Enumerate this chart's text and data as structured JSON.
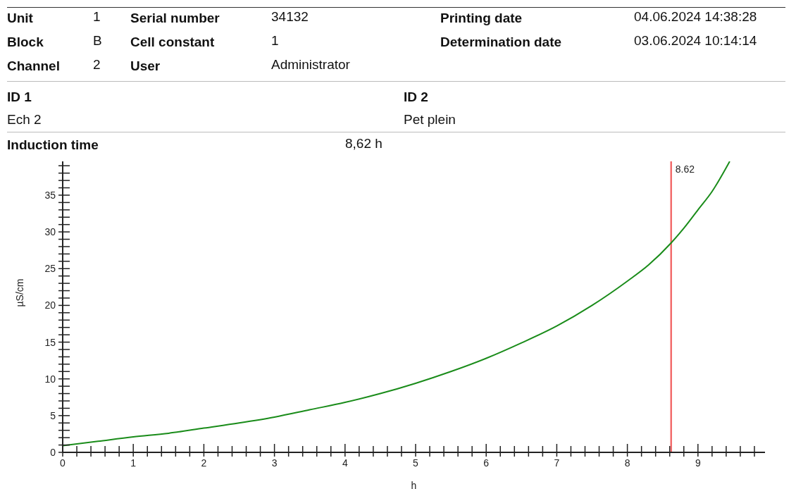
{
  "chart_data": {
    "type": "line",
    "annotations": [
      "Unit",
      "1",
      "Serial number",
      "34132",
      "Printing date",
      "04.06.2024 14:38:28",
      "Block",
      "B",
      "Cell constant",
      "1",
      "Determination date",
      "03.06.2024 10:14:14",
      "Channel",
      "2",
      "User",
      "Administrator",
      "ID 1",
      "ID 2",
      "Ech 2",
      "Pet plein",
      "Induction time",
      "8,62 h"
    ],
    "xlabel": "h",
    "ylabel": "µS/cm",
    "x": [
      0,
      0.5,
      1,
      1.5,
      2,
      2.5,
      3,
      3.5,
      4,
      4.5,
      5,
      5.5,
      6,
      6.5,
      7,
      7.5,
      8,
      8.3,
      8.62,
      8.8,
      9,
      9.2,
      9.45
    ],
    "series": [
      {
        "color": "#1a8c1a",
        "values": [
          0.9,
          1.5,
          2.1,
          2.6,
          3.3,
          4,
          4.8,
          5.8,
          6.8,
          8,
          9.4,
          11,
          12.8,
          14.9,
          17.2,
          20,
          23.3,
          25.5,
          28.5,
          30.5,
          33,
          35.5,
          39.6
        ]
      }
    ],
    "xlim": [
      0,
      9.95
    ],
    "ylim": [
      0,
      39.6
    ],
    "xticks": [
      0,
      {
        "value": 0.2,
        "label": null
      },
      {
        "value": 0.4,
        "label": null
      },
      {
        "value": 0.6,
        "label": null
      },
      {
        "value": 0.8,
        "label": null
      },
      1,
      {
        "value": 1.2,
        "label": null
      },
      {
        "value": 1.4,
        "label": null
      },
      {
        "value": 1.6,
        "label": null
      },
      {
        "value": 1.8,
        "label": null
      },
      2,
      {
        "value": 2.2,
        "label": null
      },
      {
        "value": 2.4,
        "label": null
      },
      {
        "value": 2.6,
        "label": null
      },
      {
        "value": 2.8,
        "label": null
      },
      3,
      {
        "value": 3.2,
        "label": null
      },
      {
        "value": 3.4,
        "label": null
      },
      {
        "value": 3.6,
        "label": null
      },
      {
        "value": 3.8,
        "label": null
      },
      4,
      {
        "value": 4.2,
        "label": null
      },
      {
        "value": 4.4,
        "label": null
      },
      {
        "value": 4.6,
        "label": null
      },
      {
        "value": 4.8,
        "label": null
      },
      5,
      {
        "value": 5.2,
        "label": null
      },
      {
        "value": 5.4,
        "label": null
      },
      {
        "value": 5.6,
        "label": null
      },
      {
        "value": 5.8,
        "label": null
      },
      6,
      {
        "value": 6.2,
        "label": null
      },
      {
        "value": 6.4,
        "label": null
      },
      {
        "value": 6.6,
        "label": null
      },
      {
        "value": 6.8,
        "label": null
      },
      7,
      {
        "value": 7.2,
        "label": null
      },
      {
        "value": 7.4,
        "label": null
      },
      {
        "value": 7.6,
        "label": null
      },
      {
        "value": 7.8,
        "label": null
      },
      8,
      {
        "value": 8.2,
        "label": null
      },
      {
        "value": 8.4,
        "label": null
      },
      {
        "value": 8.6,
        "label": null
      },
      {
        "value": 8.8,
        "label": null
      },
      9,
      {
        "value": 9.2,
        "label": null
      },
      {
        "value": 9.4,
        "label": null
      },
      {
        "value": 9.6,
        "label": null
      },
      {
        "value": 9.8,
        "label": null
      }
    ],
    "yticks": [
      0,
      {
        "value": 1,
        "label": null
      },
      {
        "value": 2,
        "label": null
      },
      {
        "value": 3,
        "label": null
      },
      {
        "value": 4,
        "label": null
      },
      5,
      {
        "value": 6,
        "label": null
      },
      {
        "value": 7,
        "label": null
      },
      {
        "value": 8,
        "label": null
      },
      {
        "value": 9,
        "label": null
      },
      10,
      {
        "value": 11,
        "label": null
      },
      {
        "value": 12,
        "label": null
      },
      {
        "value": 13,
        "label": null
      },
      {
        "value": 14,
        "label": null
      },
      15,
      {
        "value": 16,
        "label": null
      },
      {
        "value": 17,
        "label": null
      },
      {
        "value": 18,
        "label": null
      },
      {
        "value": 19,
        "label": null
      },
      20,
      {
        "value": 21,
        "label": null
      },
      {
        "value": 22,
        "label": null
      },
      {
        "value": 23,
        "label": null
      },
      {
        "value": 24,
        "label": null
      },
      25,
      {
        "value": 26,
        "label": null
      },
      {
        "value": 27,
        "label": null
      },
      {
        "value": 28,
        "label": null
      },
      {
        "value": 29,
        "label": null
      },
      30,
      {
        "value": 31,
        "label": null
      },
      {
        "value": 32,
        "label": null
      },
      {
        "value": 33,
        "label": null
      },
      {
        "value": 34,
        "label": null
      },
      35,
      {
        "value": 36,
        "label": null
      },
      {
        "value": 37,
        "label": null
      },
      {
        "value": 38,
        "label": null
      },
      {
        "value": 39,
        "label": null
      }
    ],
    "ref_lines": [
      {
        "axis": "x",
        "value": 8.62,
        "label": "8.62",
        "color": "#f26b6b"
      }
    ],
    "grid": false,
    "legend": false,
    "marker": "none",
    "line_style": "solid"
  }
}
